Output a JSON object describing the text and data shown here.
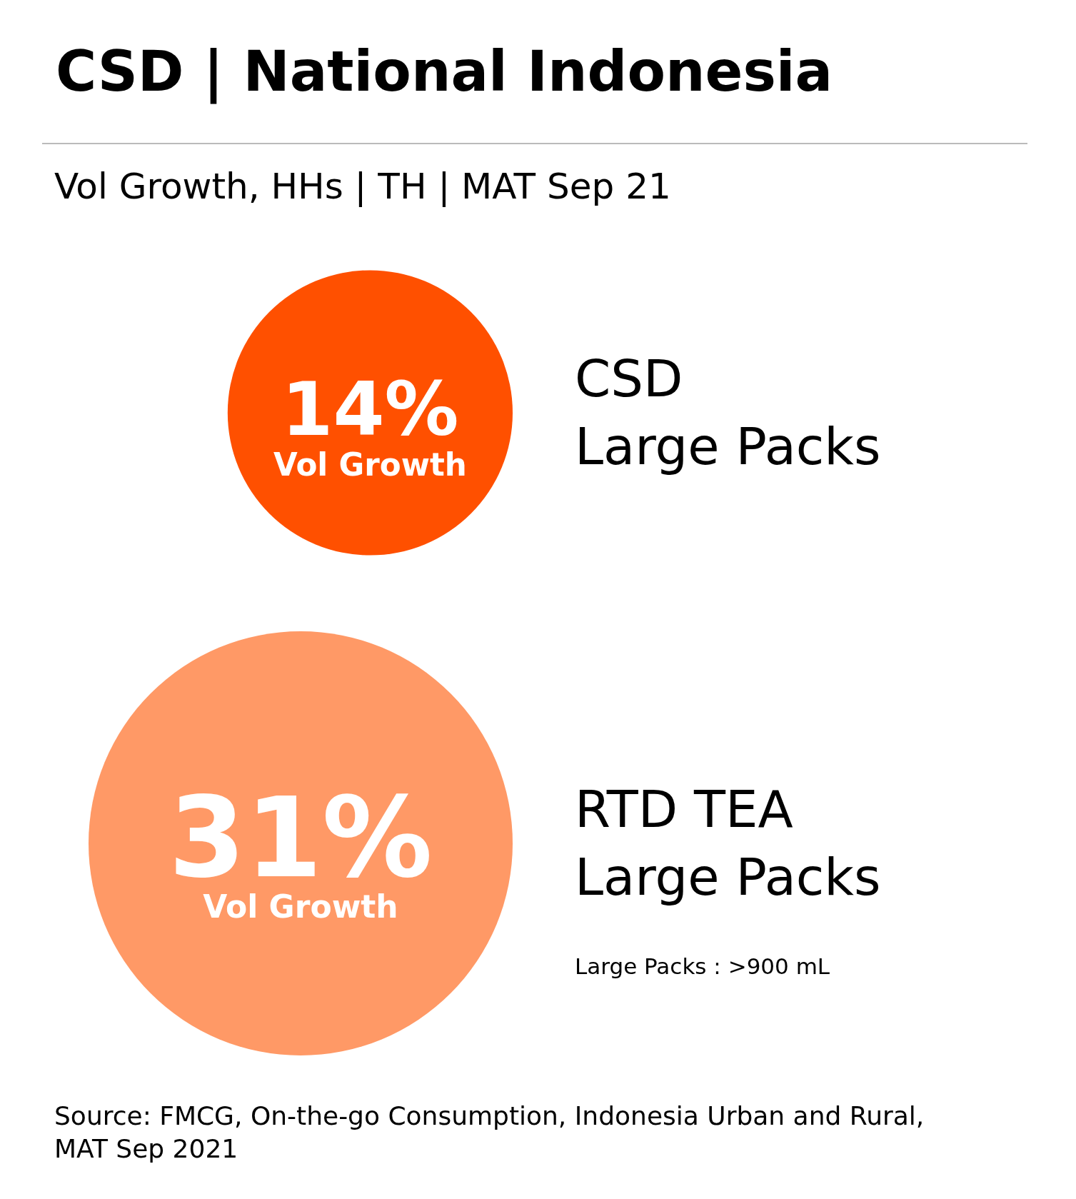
{
  "chart_data": {
    "type": "other",
    "title": "CSD | National Indonesia",
    "subtitle": "Vol Growth, HHs | TH | MAT Sep 21",
    "categories": [
      "CSD\nLarge Packs",
      "RTD TEA\nLarge Packs"
    ],
    "values": [
      14,
      31
    ],
    "colors": [
      "#ff5000",
      "#ff9966"
    ],
    "value_labels": [
      "14%\nVol Growth",
      "31%\nVol Growth"
    ],
    "annotations": [
      "Large Packs : >900 mL",
      "Source: FMCG, On-the-go Consumption, Indonesia Urban and Rural, MAT Sep 2021"
    ]
  }
}
